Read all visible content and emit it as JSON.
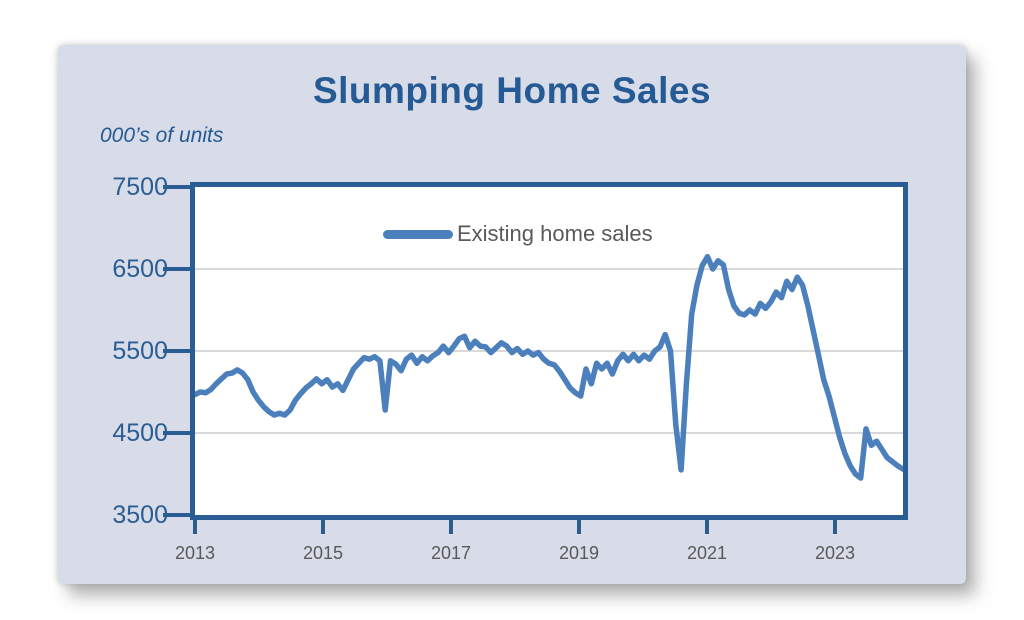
{
  "panel": {
    "title": "Slumping Home Sales",
    "units_label": "000’s of units"
  },
  "legend": {
    "label": "Existing home sales"
  },
  "colors": {
    "panel_background": "#d7dce8",
    "plot_background": "#ffffff",
    "plot_border": "#2a5d93",
    "title_text": "#265a94",
    "axis_label_text": "#2a5d93",
    "x_label_text": "#595959",
    "gridline": "#d9d9d9",
    "series_line": "#4b80bc"
  },
  "chart_data": {
    "type": "line",
    "title": "Slumping Home Sales",
    "ylabel": "000’s of units",
    "xlabel": "",
    "ylim": [
      3500,
      7500
    ],
    "y_tick_labels": [
      "7500",
      "6500",
      "5500",
      "4500",
      "3500"
    ],
    "x_tick_labels": [
      "2013",
      "2015",
      "2017",
      "2019",
      "2021",
      "2023"
    ],
    "x_range_months": "2013-01 to 2024-03",
    "grid": "horizontal gridlines at 6500, 5500, 4500",
    "legend_position": "inside top-center",
    "series": [
      {
        "name": "Existing home sales",
        "color": "#4b80bc",
        "frequency": "monthly",
        "values": [
          4970,
          5000,
          4990,
          5030,
          5100,
          5160,
          5220,
          5230,
          5270,
          5230,
          5150,
          5000,
          4900,
          4820,
          4760,
          4720,
          4740,
          4720,
          4780,
          4900,
          4980,
          5050,
          5100,
          5160,
          5100,
          5150,
          5060,
          5100,
          5020,
          5150,
          5280,
          5350,
          5420,
          5400,
          5430,
          5380,
          4780,
          5380,
          5340,
          5260,
          5400,
          5450,
          5350,
          5430,
          5380,
          5440,
          5480,
          5560,
          5480,
          5560,
          5650,
          5680,
          5540,
          5620,
          5560,
          5550,
          5480,
          5540,
          5600,
          5560,
          5480,
          5530,
          5460,
          5500,
          5450,
          5480,
          5400,
          5350,
          5330,
          5250,
          5150,
          5050,
          4990,
          4950,
          5280,
          5100,
          5350,
          5280,
          5350,
          5220,
          5380,
          5460,
          5380,
          5460,
          5380,
          5450,
          5400,
          5500,
          5550,
          5700,
          5500,
          4600,
          4050,
          5100,
          5950,
          6300,
          6540,
          6650,
          6500,
          6600,
          6550,
          6250,
          6050,
          5960,
          5940,
          6000,
          5950,
          6080,
          6020,
          6100,
          6220,
          6150,
          6350,
          6250,
          6400,
          6300,
          6050,
          5750,
          5450,
          5150,
          4950,
          4700,
          4450,
          4250,
          4100,
          4000,
          3950,
          4550,
          4350,
          4400,
          4300,
          4200,
          4150,
          4100,
          4060
        ]
      }
    ]
  }
}
